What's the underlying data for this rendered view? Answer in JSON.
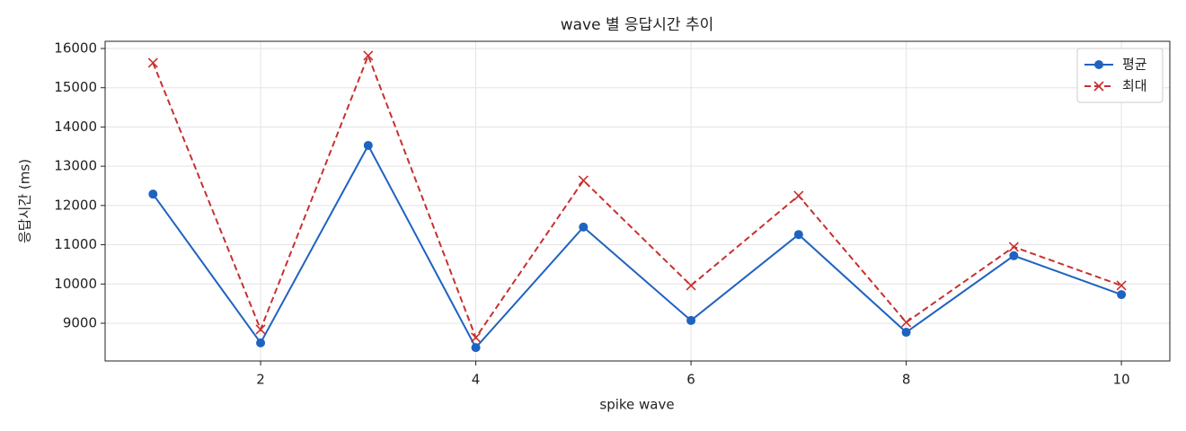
{
  "chart_data": {
    "type": "line",
    "title": "wave 별 응답시간 추이",
    "xlabel": "spike wave",
    "ylabel": "응답시간 (ms)",
    "x": [
      1,
      2,
      3,
      4,
      5,
      6,
      7,
      8,
      9,
      10
    ],
    "series": [
      {
        "name": "평균",
        "color": "#1f63c0",
        "marker": "o",
        "linestyle": "solid",
        "values": [
          12290,
          8500,
          13530,
          8380,
          11450,
          9070,
          11260,
          8770,
          10720,
          9730
        ]
      },
      {
        "name": "최대",
        "color": "#c8302f",
        "marker": "x",
        "linestyle": "dashed",
        "values": [
          15635,
          8840,
          15818,
          8634,
          12638,
          9961,
          12249,
          9023,
          10945,
          9961
        ]
      }
    ],
    "xlim": [
      0.555,
      10.45
    ],
    "ylim": [
      8039,
      16183
    ],
    "xticks": [
      2,
      4,
      6,
      8,
      10
    ],
    "yticks": [
      9000,
      10000,
      11000,
      12000,
      13000,
      14000,
      15000,
      16000
    ],
    "grid": true,
    "legend": "upper right"
  }
}
